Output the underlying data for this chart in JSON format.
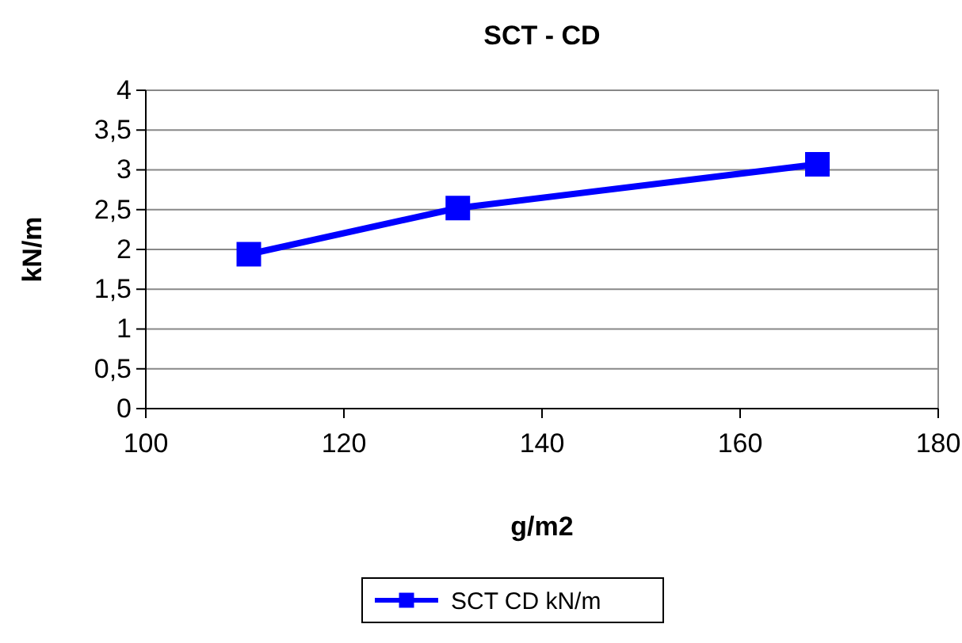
{
  "chart_data": {
    "type": "line",
    "title": "SCT - CD",
    "xlabel": "g/m2",
    "ylabel": "kN/m",
    "x": [
      110.4,
      131.5,
      167.8
    ],
    "series": [
      {
        "name": "SCT CD kN/m",
        "color": "#0000ff",
        "values": [
          1.94,
          2.52,
          3.07
        ]
      }
    ],
    "xlim": [
      100,
      180
    ],
    "xticks": [
      100,
      120,
      140,
      160,
      180
    ],
    "ylim": [
      0,
      4
    ],
    "yticks": [
      0,
      {
        "value": 0.5,
        "label": "0,5"
      },
      1,
      {
        "value": 1.5,
        "label": "1,5"
      },
      2,
      {
        "value": 2.5,
        "label": "2,5"
      },
      3,
      {
        "value": 3.5,
        "label": "3,5"
      },
      4
    ],
    "grid": "y",
    "legend": "bottom",
    "marker": "square",
    "line_style": "solid"
  }
}
